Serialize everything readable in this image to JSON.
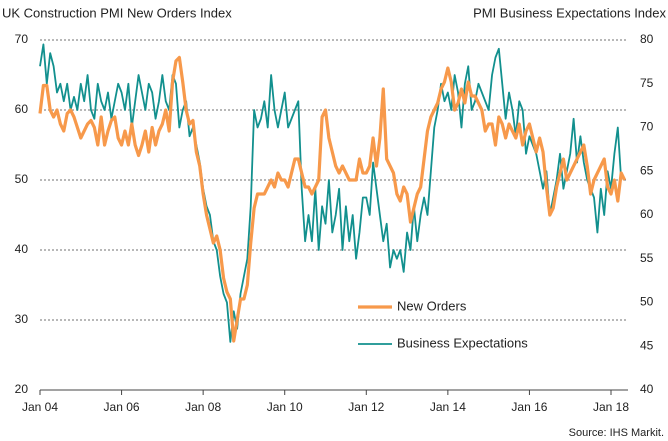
{
  "chart_data": {
    "type": "line",
    "title": "UK Construction PMI New Orders Index",
    "y2_title": "PMI Business Expectations Index",
    "source": "Source: IHS Markit.",
    "x": [
      "2004-01",
      "2004-02",
      "2004-03",
      "2004-04",
      "2004-05",
      "2004-06",
      "2004-07",
      "2004-08",
      "2004-09",
      "2004-10",
      "2004-11",
      "2004-12",
      "2005-01",
      "2005-02",
      "2005-03",
      "2005-04",
      "2005-05",
      "2005-06",
      "2005-07",
      "2005-08",
      "2005-09",
      "2005-10",
      "2005-11",
      "2005-12",
      "2006-01",
      "2006-02",
      "2006-03",
      "2006-04",
      "2006-05",
      "2006-06",
      "2006-07",
      "2006-08",
      "2006-09",
      "2006-10",
      "2006-11",
      "2006-12",
      "2007-01",
      "2007-02",
      "2007-03",
      "2007-04",
      "2007-05",
      "2007-06",
      "2007-07",
      "2007-08",
      "2007-09",
      "2007-10",
      "2007-11",
      "2007-12",
      "2008-01",
      "2008-02",
      "2008-03",
      "2008-04",
      "2008-05",
      "2008-06",
      "2008-07",
      "2008-08",
      "2008-09",
      "2008-10",
      "2008-11",
      "2008-12",
      "2009-01",
      "2009-02",
      "2009-03",
      "2009-04",
      "2009-05",
      "2009-06",
      "2009-07",
      "2009-08",
      "2009-09",
      "2009-10",
      "2009-11",
      "2009-12",
      "2010-01",
      "2010-02",
      "2010-03",
      "2010-04",
      "2010-05",
      "2010-06",
      "2010-07",
      "2010-08",
      "2010-09",
      "2010-10",
      "2010-11",
      "2010-12",
      "2011-01",
      "2011-02",
      "2011-03",
      "2011-04",
      "2011-05",
      "2011-06",
      "2011-07",
      "2011-08",
      "2011-09",
      "2011-10",
      "2011-11",
      "2011-12",
      "2012-01",
      "2012-02",
      "2012-03",
      "2012-04",
      "2012-05",
      "2012-06",
      "2012-07",
      "2012-08",
      "2012-09",
      "2012-10",
      "2012-11",
      "2012-12",
      "2013-01",
      "2013-02",
      "2013-03",
      "2013-04",
      "2013-05",
      "2013-06",
      "2013-07",
      "2013-08",
      "2013-09",
      "2013-10",
      "2013-11",
      "2013-12",
      "2014-01",
      "2014-02",
      "2014-03",
      "2014-04",
      "2014-05",
      "2014-06",
      "2014-07",
      "2014-08",
      "2014-09",
      "2014-10",
      "2014-11",
      "2014-12",
      "2015-01",
      "2015-02",
      "2015-03",
      "2015-04",
      "2015-05",
      "2015-06",
      "2015-07",
      "2015-08",
      "2015-09",
      "2015-10",
      "2015-11",
      "2015-12",
      "2016-01",
      "2016-02",
      "2016-03",
      "2016-04",
      "2016-05",
      "2016-06",
      "2016-07",
      "2016-08",
      "2016-09",
      "2016-10",
      "2016-11",
      "2016-12",
      "2017-01",
      "2017-02",
      "2017-03",
      "2017-04",
      "2017-05",
      "2017-06",
      "2017-07",
      "2017-08",
      "2017-09",
      "2017-10",
      "2017-11",
      "2017-12",
      "2018-01",
      "2018-02",
      "2018-03",
      "2018-04",
      "2018-05"
    ],
    "series": [
      {
        "name": "New Orders",
        "color": "#f7994b",
        "axis": "y",
        "values": [
          59.5,
          63.5,
          63.5,
          60,
          59,
          60,
          58,
          57,
          59.5,
          60,
          59,
          57.5,
          56,
          57,
          58,
          58.5,
          57.5,
          55,
          59,
          55,
          57,
          58.5,
          59,
          56,
          55,
          57,
          55,
          58,
          55,
          53.5,
          55,
          57,
          54,
          57.5,
          55,
          57,
          58,
          60,
          57,
          64,
          67,
          67.5,
          64,
          60,
          58,
          58.5,
          54,
          52,
          48,
          45,
          43,
          41,
          42,
          40,
          36,
          34,
          33,
          27,
          30,
          33,
          33,
          35,
          41,
          46,
          48,
          48,
          48,
          49,
          50,
          49,
          51,
          50,
          50,
          49,
          51,
          53,
          53,
          51,
          49,
          49,
          48,
          49,
          50,
          59,
          60,
          56,
          54,
          52,
          51,
          52,
          51,
          50,
          50,
          50,
          53,
          51,
          51,
          52,
          56,
          52,
          56,
          63,
          53,
          52,
          51,
          48,
          47,
          49,
          48,
          44,
          46,
          48,
          49,
          53,
          57,
          59,
          60,
          61,
          63,
          64,
          66,
          64,
          60,
          61,
          63,
          61,
          64,
          62,
          62,
          61,
          60,
          57,
          58,
          58,
          55,
          59,
          58,
          56,
          58,
          57,
          56,
          58,
          55,
          57,
          58,
          56,
          54,
          56,
          54,
          49,
          45,
          46,
          49,
          51,
          53,
          50,
          51,
          52,
          53,
          54,
          55,
          52,
          48,
          50,
          51,
          52,
          53,
          49,
          48,
          50,
          47,
          51,
          50
        ]
      },
      {
        "name": "Business Expectations",
        "color": "#12908e",
        "axis": "y2",
        "values": [
          77,
          79.5,
          75,
          78.5,
          77,
          74,
          75,
          73,
          75,
          72,
          73.5,
          72,
          75,
          73,
          76,
          72,
          71,
          75,
          73,
          72,
          74,
          71,
          73,
          75,
          74,
          72,
          75,
          70,
          73,
          76,
          74,
          72,
          75,
          74,
          71,
          73,
          76,
          73,
          72,
          76,
          75,
          70,
          72,
          73,
          69,
          70,
          68,
          66,
          63,
          61,
          60,
          57,
          56,
          53,
          51,
          50,
          45.5,
          49,
          47,
          51,
          53,
          55,
          61,
          72,
          70,
          71,
          73,
          70,
          76,
          72,
          70,
          72,
          74,
          70,
          71,
          72,
          73,
          63,
          57,
          60,
          57,
          63,
          56,
          61,
          59,
          64,
          58,
          60,
          63,
          56,
          61,
          57,
          60,
          55,
          58,
          62,
          62,
          60,
          66,
          63,
          60,
          57,
          59,
          54,
          56,
          55,
          56,
          53.5,
          58,
          56,
          61,
          57,
          60,
          62,
          60,
          65,
          70,
          72,
          75,
          73,
          74,
          72,
          76,
          74,
          70,
          75,
          77,
          72,
          73,
          75,
          74,
          73,
          72,
          76,
          78,
          79,
          75,
          71,
          74,
          72,
          69,
          73,
          72,
          67,
          69,
          68,
          67,
          65,
          63,
          65,
          60,
          62,
          64,
          67,
          63,
          65,
          67,
          71,
          66,
          69,
          66,
          64,
          63,
          62,
          58,
          63,
          60,
          65,
          63,
          67,
          70,
          64,
          null
        ]
      }
    ],
    "xlim": [
      "2004-01",
      "2018-06"
    ],
    "xticks": [
      {
        "value": "2004-01",
        "label": "Jan 04"
      },
      {
        "value": "2006-01",
        "label": "Jan 06"
      },
      {
        "value": "2008-01",
        "label": "Jan 08"
      },
      {
        "value": "2010-01",
        "label": "Jan 10"
      },
      {
        "value": "2012-01",
        "label": "Jan 12"
      },
      {
        "value": "2014-01",
        "label": "Jan 14"
      },
      {
        "value": "2016-01",
        "label": "Jan 16"
      },
      {
        "value": "2018-01",
        "label": "Jan 18"
      }
    ],
    "ylim": [
      20,
      70
    ],
    "yticks": [
      20,
      30,
      40,
      50,
      60,
      70
    ],
    "y2lim": [
      40,
      80
    ],
    "y2ticks": [
      40,
      45,
      50,
      55,
      60,
      65,
      70,
      75,
      80
    ],
    "grid": true
  }
}
